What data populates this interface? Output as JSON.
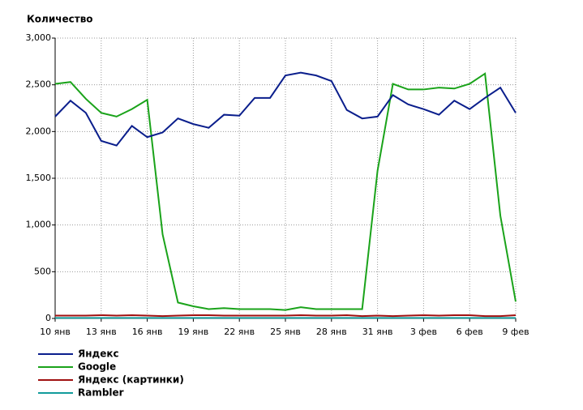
{
  "chart_data": {
    "type": "line",
    "title": "Количество",
    "categories": [
      "10 янв",
      null,
      null,
      "13 янв",
      null,
      null,
      "16 янв",
      null,
      null,
      "19 янв",
      null,
      null,
      "22 янв",
      null,
      null,
      "25 янв",
      null,
      null,
      "28 янв",
      null,
      null,
      "31 янв",
      null,
      null,
      "3 фев",
      null,
      null,
      "6 фев",
      null,
      null,
      "9 фев"
    ],
    "series": [
      {
        "name": "Яндекс",
        "color": "#0a1e8c",
        "values": [
          2160,
          2330,
          2200,
          1900,
          1850,
          2060,
          1940,
          1990,
          2140,
          2080,
          2040,
          2180,
          2170,
          2360,
          2360,
          2600,
          2630,
          2600,
          2540,
          2230,
          2140,
          2160,
          2390,
          2290,
          2240,
          2180,
          2330,
          2240,
          2360,
          2470,
          2200
        ]
      },
      {
        "name": "Google",
        "color": "#1aa31a",
        "values": [
          2510,
          2530,
          2350,
          2200,
          2160,
          2240,
          2340,
          900,
          170,
          130,
          100,
          110,
          100,
          100,
          100,
          90,
          120,
          100,
          100,
          100,
          100,
          1580,
          2510,
          2450,
          2450,
          2470,
          2460,
          2510,
          2620,
          1100,
          180
        ]
      },
      {
        "name": "Яндекс (картинки)",
        "color": "#a01010",
        "values": [
          30,
          30,
          30,
          35,
          30,
          35,
          30,
          25,
          30,
          35,
          35,
          30,
          30,
          30,
          30,
          30,
          35,
          30,
          30,
          35,
          25,
          30,
          25,
          30,
          35,
          30,
          35,
          35,
          25,
          25,
          35
        ]
      },
      {
        "name": "Rambler",
        "color": "#129b9b",
        "values": [
          5,
          5,
          5,
          5,
          5,
          5,
          5,
          5,
          5,
          5,
          5,
          5,
          5,
          5,
          5,
          5,
          5,
          5,
          5,
          5,
          5,
          5,
          5,
          5,
          5,
          5,
          5,
          5,
          5,
          5,
          5
        ]
      }
    ],
    "ylim": [
      0,
      3000
    ],
    "yticks": [
      0,
      500,
      {
        "value": 1000,
        "label": "1,000"
      },
      {
        "value": 1500,
        "label": "1,500"
      },
      {
        "value": 2000,
        "label": "2,000"
      },
      {
        "value": 2500,
        "label": "2,500"
      },
      {
        "value": 3000,
        "label": "3,000"
      }
    ],
    "grid": true
  }
}
